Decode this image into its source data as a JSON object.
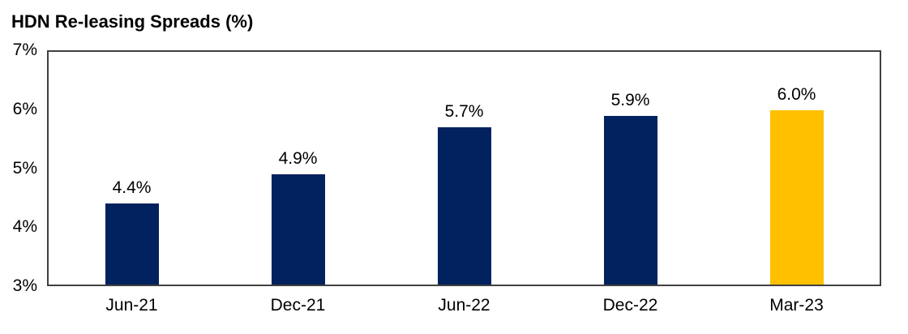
{
  "title": "HDN Re-leasing Spreads (%)",
  "colors": {
    "navy": "#01215F",
    "gold": "#FFC000",
    "axis_border": "#404040",
    "text": "#000000",
    "background": "#FFFFFF"
  },
  "chart_data": {
    "type": "bar",
    "title": "HDN Re-leasing Spreads (%)",
    "categories": [
      "Jun-21",
      "Dec-21",
      "Jun-22",
      "Dec-22",
      "Mar-23"
    ],
    "values": [
      4.4,
      4.9,
      5.7,
      5.9,
      6.0
    ],
    "data_labels": [
      "4.4%",
      "4.9%",
      "5.7%",
      "5.9%",
      "6.0%"
    ],
    "bar_colors": [
      "#01215F",
      "#01215F",
      "#01215F",
      "#01215F",
      "#FFC000"
    ],
    "xlabel": "",
    "ylabel": "",
    "ylim": [
      3,
      7
    ],
    "yticks": [
      7,
      6,
      5,
      4,
      3
    ],
    "ytick_labels": [
      "7%",
      "6%",
      "5%",
      "4%",
      "3%"
    ],
    "grid": false,
    "legend": false,
    "plot_border": true,
    "data_labels_position": "above-bars"
  }
}
